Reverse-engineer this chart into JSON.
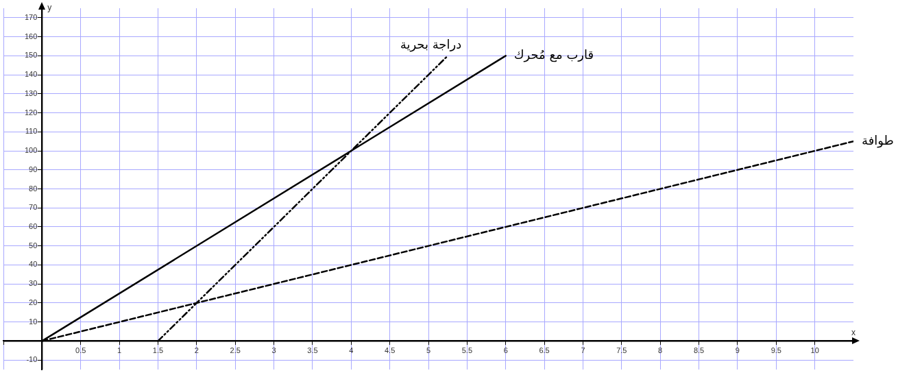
{
  "chart_data": {
    "type": "line",
    "xlabel": "x",
    "ylabel": "y",
    "xlim": [
      -0.5,
      10.5
    ],
    "ylim": [
      -15,
      175
    ],
    "xticks": [
      {
        "value": -0.5,
        "label": null
      },
      {
        "value": 0,
        "label": null
      },
      0.5,
      1,
      1.5,
      2,
      2.5,
      3,
      3.5,
      4,
      4.5,
      5,
      5.5,
      6,
      6.5,
      7,
      7.5,
      8,
      8.5,
      9,
      9.5,
      10
    ],
    "yticks": [
      -10,
      {
        "value": 0,
        "label": null
      },
      10,
      20,
      30,
      40,
      50,
      60,
      70,
      80,
      90,
      100,
      110,
      120,
      130,
      140,
      150,
      160,
      170
    ],
    "grid": true,
    "marker": "none",
    "series": [
      {
        "name": "قارب مع مُحرك",
        "color": "#000000",
        "line_style": "solid",
        "x": [
          0,
          6
        ],
        "values": [
          0,
          150
        ]
      },
      {
        "name": "دراجة بحرية",
        "color": "#000000",
        "line_style": "dotted",
        "x": [
          1.5,
          5.25
        ],
        "values": [
          0,
          150
        ]
      },
      {
        "name": "طوافة",
        "color": "#000000",
        "line_style": "dashed",
        "x": [
          0,
          10.5
        ],
        "values": [
          0,
          105
        ]
      }
    ]
  }
}
